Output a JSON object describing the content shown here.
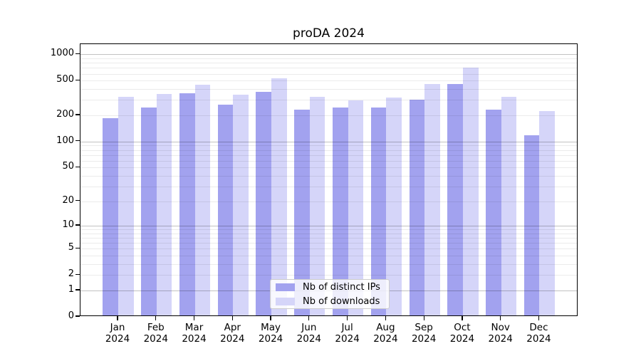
{
  "chart_data": {
    "type": "bar",
    "title": "proDA 2024",
    "categories": [
      "Jan",
      "Feb",
      "Mar",
      "Apr",
      "May",
      "Jun",
      "Jul",
      "Aug",
      "Sep",
      "Oct",
      "Nov",
      "Dec"
    ],
    "x_tick_second_line": "2024",
    "series": [
      {
        "name": "Nb of distinct IPs",
        "color": "#a2a2ef",
        "values": [
          180,
          237,
          347,
          257,
          356,
          225,
          235,
          236,
          291,
          443,
          222,
          113
        ]
      },
      {
        "name": "Nb of downloads",
        "color": "#d5d5f9",
        "values": [
          315,
          339,
          432,
          334,
          508,
          314,
          286,
          310,
          438,
          678,
          312,
          214
        ]
      }
    ],
    "y_scale": "log10(value+1)",
    "y_ticks": [
      0,
      1,
      2,
      5,
      10,
      20,
      50,
      100,
      200,
      500,
      1000
    ],
    "ylim": [
      0,
      1330
    ],
    "grid": true,
    "legend_position": "inside-bottom-center",
    "colors": {
      "axis": "#000000",
      "major_gridline": "#c3c3c3",
      "minor_gridline": "#ebebeb",
      "background": "#ffffff"
    }
  }
}
